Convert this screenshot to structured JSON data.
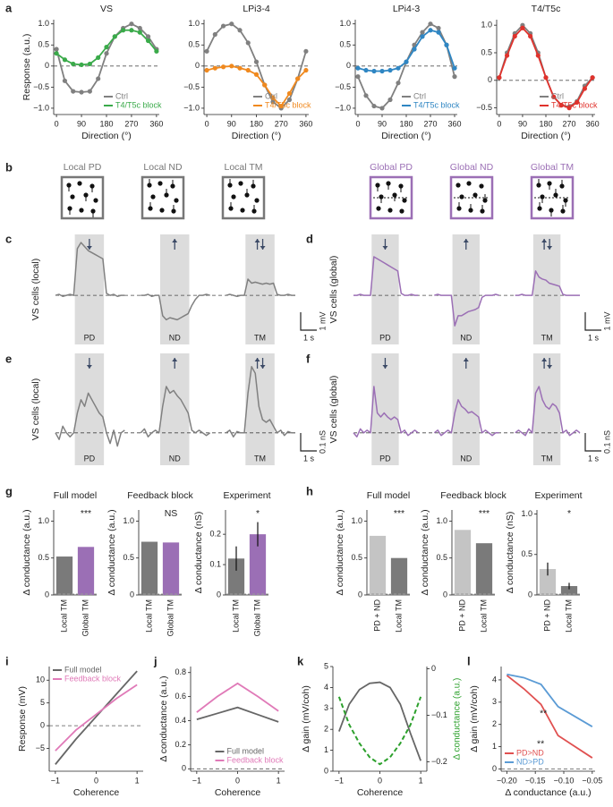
{
  "stimuli": {
    "panel": "b",
    "labels": [
      "Local PD",
      "Local ND",
      "Local TM",
      "Global PD",
      "Global ND",
      "Global TM"
    ],
    "colors": [
      "#777777",
      "#777777",
      "#777777",
      "#9b6fb5",
      "#9b6fb5",
      "#9b6fb5"
    ]
  },
  "chart_data": [
    {
      "panel": "a",
      "type": "line",
      "title": "VS",
      "xlabel": "Direction (°)",
      "ylabel": "Response (a.u.)",
      "x": [
        0,
        30,
        60,
        90,
        120,
        150,
        180,
        210,
        240,
        270,
        300,
        330,
        360
      ],
      "xlim": [
        -10,
        370
      ],
      "xticks": [
        0,
        90,
        180,
        270,
        360
      ],
      "ylim": [
        -1.15,
        1.1
      ],
      "yticks": [
        {
          "value": -1,
          "label": "−1.0"
        },
        {
          "value": -0.5,
          "label": "−0.5"
        },
        0,
        0.5,
        {
          "value": 1,
          "label": "1.0"
        }
      ],
      "reference_line": 0,
      "markers": true,
      "legend": "lower right",
      "series": [
        {
          "name": "Ctrl",
          "color": "#808080",
          "values": [
            0.4,
            -0.35,
            -0.6,
            -0.62,
            -0.6,
            -0.3,
            0.3,
            0.7,
            0.9,
            1.0,
            0.9,
            0.7,
            0.4
          ]
        },
        {
          "name": "T4/T5c block",
          "color": "#3aaa4a",
          "values": [
            0.3,
            0.15,
            0.05,
            0.03,
            0.05,
            0.2,
            0.45,
            0.7,
            0.85,
            0.85,
            0.8,
            0.6,
            0.35
          ]
        }
      ]
    },
    {
      "type": "line",
      "title": "LPi3-4",
      "xlabel": "Direction (°)",
      "x": [
        0,
        30,
        60,
        90,
        120,
        150,
        180,
        210,
        240,
        270,
        300,
        330,
        360
      ],
      "xlim": [
        -10,
        370
      ],
      "xticks": [
        0,
        90,
        180,
        270,
        360
      ],
      "ylim": [
        -1.15,
        1.1
      ],
      "yticks": [
        {
          "value": -1,
          "label": "−1.0"
        },
        {
          "value": -0.5,
          "label": "−0.5"
        },
        0,
        0.5,
        {
          "value": 1,
          "label": "1.0"
        }
      ],
      "reference_line": 0,
      "markers": true,
      "legend": "lower right",
      "series": [
        {
          "name": "Ctrl",
          "color": "#808080",
          "values": [
            0.35,
            0.75,
            0.95,
            1.0,
            0.85,
            0.55,
            0.1,
            -0.45,
            -0.85,
            -1.0,
            -0.8,
            -0.3,
            0.35
          ]
        },
        {
          "name": "T4/T5c block",
          "color": "#f0891e",
          "values": [
            -0.1,
            -0.05,
            -0.02,
            0,
            -0.05,
            -0.1,
            -0.2,
            -0.45,
            -0.75,
            -0.95,
            -0.65,
            -0.3,
            -0.1
          ]
        }
      ]
    },
    {
      "type": "line",
      "title": "LPi4-3",
      "xlabel": "Direction (°)",
      "x": [
        0,
        30,
        60,
        90,
        120,
        150,
        180,
        210,
        240,
        270,
        300,
        330,
        360
      ],
      "xlim": [
        -10,
        370
      ],
      "xticks": [
        0,
        90,
        180,
        270,
        360
      ],
      "ylim": [
        -1.15,
        1.1
      ],
      "yticks": [
        {
          "value": -1,
          "label": "−1.0"
        },
        {
          "value": -0.5,
          "label": "−0.5"
        },
        0,
        0.5,
        {
          "value": 1,
          "label": "1.0"
        }
      ],
      "reference_line": 0,
      "markers": true,
      "legend": "lower right",
      "series": [
        {
          "name": "Ctrl",
          "color": "#808080",
          "values": [
            -0.25,
            -0.7,
            -0.95,
            -1.0,
            -0.8,
            -0.4,
            0.1,
            0.5,
            0.8,
            1.0,
            0.9,
            0.5,
            -0.25
          ]
        },
        {
          "name": "T4/T5c block",
          "color": "#2f86c3",
          "values": [
            -0.05,
            -0.1,
            -0.12,
            -0.12,
            -0.1,
            -0.05,
            0.1,
            0.4,
            0.7,
            0.85,
            0.8,
            0.5,
            -0.05
          ]
        }
      ]
    },
    {
      "type": "line",
      "title": "T4/T5c",
      "xlabel": "Direction (°)",
      "x": [
        0,
        30,
        60,
        90,
        120,
        150,
        180,
        210,
        240,
        270,
        300,
        330,
        360
      ],
      "xlim": [
        -10,
        370
      ],
      "xticks": [
        0,
        90,
        180,
        270,
        360
      ],
      "ylim": [
        -0.62,
        1.1
      ],
      "yticks": [
        {
          "value": -0.5,
          "label": "−0.5"
        },
        0,
        0.5,
        {
          "value": 1,
          "label": "1.0"
        }
      ],
      "reference_line": 0,
      "markers": true,
      "legend": "lower right",
      "series": [
        {
          "name": "Ctrl",
          "color": "#808080",
          "values": [
            0.05,
            0.5,
            0.85,
            1.0,
            0.85,
            0.5,
            0.05,
            -0.3,
            -0.45,
            -0.48,
            -0.38,
            -0.1,
            0.05
          ]
        },
        {
          "name": "T4/T5c block",
          "color": "#e0322c",
          "values": [
            0.05,
            0.45,
            0.8,
            0.95,
            0.8,
            0.45,
            0.05,
            -0.3,
            -0.45,
            -0.5,
            -0.4,
            -0.15,
            0.05
          ]
        }
      ]
    },
    {
      "panel": "c",
      "type": "trace",
      "ylabel": "VS cells (local)",
      "conditions": [
        "PD",
        "ND",
        "TM"
      ],
      "color": "#808080",
      "ylim": [
        -1.8,
        3.0
      ],
      "reference_line": 0,
      "scale_x": "1 s",
      "scale_y": "1 mV",
      "traces": [
        [
          0,
          0.05,
          -0.05,
          0,
          0.05,
          0,
          2.3,
          2.6,
          2.4,
          2.2,
          2.1,
          2.0,
          1.9,
          1.8,
          0.1,
          0,
          0.05,
          -0.05,
          0,
          0
        ],
        [
          0,
          0,
          0.05,
          -0.05,
          0,
          0,
          -1.0,
          -1.2,
          -1.1,
          -1.15,
          -1.2,
          -1.1,
          -1.0,
          -0.9,
          -0.5,
          -0.2,
          0,
          0,
          0.05,
          0
        ],
        [
          0,
          0.05,
          0,
          -0.05,
          0,
          0,
          0.8,
          0.6,
          0.65,
          0.6,
          0.55,
          0.6,
          0.55,
          0.6,
          0.05,
          0,
          0,
          0.05,
          0,
          0
        ]
      ]
    },
    {
      "panel": "d",
      "type": "trace",
      "ylabel": "VS cells (global)",
      "conditions": [
        "PD",
        "ND",
        "TM"
      ],
      "color": "#9b6fb5",
      "ylim": [
        -1.8,
        3.0
      ],
      "reference_line": 0,
      "scale_x": "1 s",
      "scale_y": "1 mV",
      "traces": [
        [
          0,
          0,
          0.05,
          0,
          0,
          0,
          1.9,
          1.8,
          1.7,
          1.6,
          1.5,
          1.4,
          1.3,
          1.2,
          0.1,
          0,
          0,
          0.05,
          0,
          0
        ],
        [
          0,
          0.05,
          0,
          0,
          0,
          0,
          -1.5,
          -1.0,
          -1.0,
          -0.9,
          -0.8,
          -0.75,
          -0.7,
          -0.6,
          -0.1,
          0,
          0,
          0,
          0.05,
          0
        ],
        [
          0,
          0,
          0.05,
          0,
          0,
          0,
          1.2,
          0.9,
          0.8,
          0.75,
          0.6,
          0.55,
          0.5,
          0.45,
          0.05,
          0,
          0,
          0,
          0,
          0
        ]
      ]
    },
    {
      "panel": "e",
      "type": "trace",
      "ylabel": "VS cells (local)",
      "conditions": [
        "PD",
        "ND",
        "TM"
      ],
      "color": "#808080",
      "ylim": [
        -0.15,
        0.6
      ],
      "reference_line": 0,
      "scale_x": "1 s",
      "scale_y": "0.1 nS",
      "traces": [
        [
          0,
          -0.05,
          0.05,
          0,
          -0.03,
          0,
          0.15,
          0.25,
          0.2,
          0.3,
          0.25,
          0.2,
          0.15,
          0.12,
          0,
          -0.08,
          0.02,
          -0.1,
          0,
          0.02
        ],
        [
          0,
          0.03,
          -0.03,
          0,
          0.02,
          0,
          0.2,
          0.35,
          0.3,
          0.32,
          0.28,
          0.25,
          0.2,
          0.15,
          0.02,
          0,
          0.02,
          0,
          -0.02,
          0
        ],
        [
          0,
          0.02,
          -0.03,
          0.01,
          0,
          0,
          0.3,
          0.5,
          0.45,
          0.2,
          0.1,
          0.08,
          0.1,
          0.05,
          0,
          0.02,
          -0.02,
          0.01,
          0,
          0
        ]
      ]
    },
    {
      "panel": "f",
      "type": "trace",
      "ylabel": "VS cells (global)",
      "conditions": [
        "PD",
        "ND",
        "TM"
      ],
      "color": "#9b6fb5",
      "ylim": [
        -0.15,
        0.6
      ],
      "reference_line": 0,
      "scale_x": "1 s",
      "scale_y": "0.1 nS",
      "traces": [
        [
          0,
          -0.03,
          0.03,
          0,
          0.02,
          0,
          0.35,
          0.15,
          0.12,
          0.15,
          0.12,
          0.1,
          0.12,
          0.1,
          0,
          0.02,
          -0.02,
          0,
          0.02,
          0
        ],
        [
          0,
          0.02,
          -0.02,
          0,
          0.02,
          0,
          0.15,
          0.25,
          0.2,
          0.18,
          0.15,
          0.16,
          0.14,
          0.12,
          0,
          0.02,
          0,
          -0.02,
          0,
          0
        ],
        [
          0,
          0.02,
          0,
          -0.02,
          0.03,
          0,
          0.3,
          0.35,
          0.25,
          0.2,
          0.18,
          0.22,
          0.2,
          0.15,
          0,
          0.02,
          -0.02,
          0,
          0.02,
          0
        ]
      ]
    },
    {
      "panel": "g",
      "type": "bar",
      "title": "Full model",
      "ylabel": "Δ conductance (a.u.)",
      "significance": "***",
      "categories": [
        "Local TM",
        "Global TM"
      ],
      "values": [
        0.52,
        0.65
      ],
      "colors": [
        "#7a7a7a",
        "#9b6fb5"
      ],
      "ylim": [
        0,
        1.15
      ],
      "yticks": [
        0,
        0.5,
        {
          "value": 1,
          "label": "1.0"
        }
      ]
    },
    {
      "type": "bar",
      "title": "Feedback block",
      "ylabel": "Δ conductance (a.u.)",
      "significance": "NS",
      "categories": [
        "Local TM",
        "Global TM"
      ],
      "values": [
        0.72,
        0.71
      ],
      "colors": [
        "#7a7a7a",
        "#9b6fb5"
      ],
      "ylim": [
        0,
        1.15
      ],
      "yticks": [
        0,
        0.5,
        {
          "value": 1,
          "label": "1.0"
        }
      ]
    },
    {
      "type": "bar",
      "title": "Experiment",
      "ylabel": "Δ conductance (nS)",
      "significance": "*",
      "categories": [
        "Local TM",
        "Global TM"
      ],
      "values": [
        0.12,
        0.2
      ],
      "errors": [
        0.04,
        0.04
      ],
      "colors": [
        "#7a7a7a",
        "#9b6fb5"
      ],
      "ylim": [
        0,
        0.28
      ],
      "yticks": [
        0,
        0.1,
        0.2
      ]
    },
    {
      "panel": "h",
      "type": "bar",
      "title": "Full model",
      "ylabel": "Δ conductance (a.u.)",
      "significance": "***",
      "categories": [
        "PD + ND",
        "Local TM"
      ],
      "values": [
        0.8,
        0.5
      ],
      "colors": [
        "#c4c4c4",
        "#7a7a7a"
      ],
      "ylim": [
        0,
        1.15
      ],
      "yticks": [
        0,
        0.5,
        {
          "value": 1,
          "label": "1.0"
        }
      ]
    },
    {
      "type": "bar",
      "title": "Feedback block",
      "ylabel": "Δ conductance (a.u.)",
      "significance": "***",
      "categories": [
        "PD + ND",
        "Local TM"
      ],
      "values": [
        0.88,
        0.7
      ],
      "colors": [
        "#c4c4c4",
        "#7a7a7a"
      ],
      "ylim": [
        0,
        1.15
      ],
      "yticks": [
        0,
        0.5,
        {
          "value": 1,
          "label": "1.0"
        }
      ]
    },
    {
      "type": "bar",
      "title": "Experiment",
      "ylabel": "Δ conductance (nS)",
      "significance": "*",
      "categories": [
        "PD + ND",
        "Local TM"
      ],
      "values": [
        0.32,
        0.11
      ],
      "errors": [
        0.08,
        0.04
      ],
      "colors": [
        "#c4c4c4",
        "#7a7a7a"
      ],
      "ylim": [
        0,
        1.05
      ],
      "yticks": [
        0,
        0.5,
        {
          "value": 1,
          "label": "1.0"
        }
      ]
    },
    {
      "panel": "i",
      "type": "line",
      "xlabel": "Coherence",
      "ylabel": "Response (mV)",
      "x": [
        -1,
        -0.5,
        0,
        0.5,
        1
      ],
      "xlim": [
        -1.15,
        1.15
      ],
      "xticks": [
        {
          "value": -1,
          "label": "−1"
        },
        0,
        1
      ],
      "ylim": [
        -10,
        13
      ],
      "yticks": [
        {
          "value": -5,
          "label": "−5"
        },
        0,
        5,
        10
      ],
      "reference_line": 0,
      "legend": "upper left",
      "series": [
        {
          "name": "Full model",
          "color": "#666666",
          "values": [
            -8.5,
            -3,
            2,
            7,
            12
          ]
        },
        {
          "name": "Feedback block",
          "color": "#e07ab8",
          "values": [
            -5.5,
            -1,
            2.5,
            6,
            9
          ]
        }
      ]
    },
    {
      "panel": "j",
      "type": "line",
      "xlabel": "Coherence",
      "ylabel": "Δ conductance (a.u.)",
      "x": [
        -1,
        -0.5,
        0,
        0.5,
        1
      ],
      "xlim": [
        -1.15,
        1.15
      ],
      "xticks": [
        {
          "value": -1,
          "label": "−1"
        },
        0,
        1
      ],
      "ylim": [
        -0.02,
        0.85
      ],
      "yticks": [
        0,
        0.2,
        0.4,
        0.6,
        0.8
      ],
      "reference_line": 0,
      "legend": "lower center",
      "series": [
        {
          "name": "Full model",
          "color": "#666666",
          "values": [
            0.41,
            0.46,
            0.51,
            0.45,
            0.39
          ]
        },
        {
          "name": "Feedback block",
          "color": "#e07ab8",
          "values": [
            0.47,
            0.6,
            0.71,
            0.6,
            0.48
          ]
        }
      ]
    },
    {
      "panel": "k",
      "type": "line",
      "xlabel": "Coherence",
      "ylabel": "Δ gain (mV/coh)",
      "y2label": "Δ conductance (a.u.)",
      "x": [
        -1,
        -0.75,
        -0.5,
        -0.25,
        0,
        0.25,
        0.5,
        0.75,
        1
      ],
      "xlim": [
        -1.15,
        1.15
      ],
      "xticks": [
        {
          "value": -1,
          "label": "−1"
        },
        0,
        1
      ],
      "ylim": [
        0,
        5
      ],
      "yticks": [
        0,
        1,
        2,
        3,
        4,
        5
      ],
      "y2lim": [
        -0.22,
        0.005
      ],
      "y2ticks": [
        0,
        {
          "value": -0.1,
          "label": "−0.1"
        },
        {
          "value": -0.2,
          "label": "−0.2"
        }
      ],
      "series": [
        {
          "name": "Δ gain",
          "color": "#666666",
          "values": [
            1.9,
            3.2,
            3.9,
            4.2,
            4.25,
            4.0,
            3.2,
            1.8,
            0.5
          ]
        },
        {
          "name": "Δ conductance",
          "color": "#2ca02c",
          "axis": "y2",
          "dash": true,
          "values": [
            -0.06,
            -0.12,
            -0.16,
            -0.19,
            -0.205,
            -0.19,
            -0.16,
            -0.12,
            -0.06
          ]
        }
      ]
    },
    {
      "panel": "l",
      "type": "line",
      "xlabel": "Δ conductance (a.u.)",
      "ylabel": "Δ gain (mV/coh)",
      "x": [
        -0.2,
        -0.17,
        -0.14,
        -0.11,
        -0.05
      ],
      "xlim": [
        -0.21,
        -0.045
      ],
      "xticks": [
        {
          "value": -0.2,
          "label": "−0.20"
        },
        {
          "value": -0.15,
          "label": "−0.15"
        },
        {
          "value": -0.1,
          "label": "−0.10"
        },
        {
          "value": -0.05,
          "label": "−0.05"
        }
      ],
      "ylim": [
        -0.1,
        4.6
      ],
      "yticks": [
        0,
        1,
        2,
        3,
        4
      ],
      "reference_line": 0,
      "legend": "lower left",
      "annotations": [
        "**",
        "**"
      ],
      "series": [
        {
          "name": "PD>ND",
          "color": "#e05050",
          "values": [
            4.2,
            3.6,
            2.9,
            1.5,
            0.5
          ]
        },
        {
          "name": "ND>PD",
          "color": "#5b9bd5",
          "values": [
            4.25,
            4.1,
            3.8,
            2.8,
            1.9
          ]
        }
      ]
    }
  ]
}
